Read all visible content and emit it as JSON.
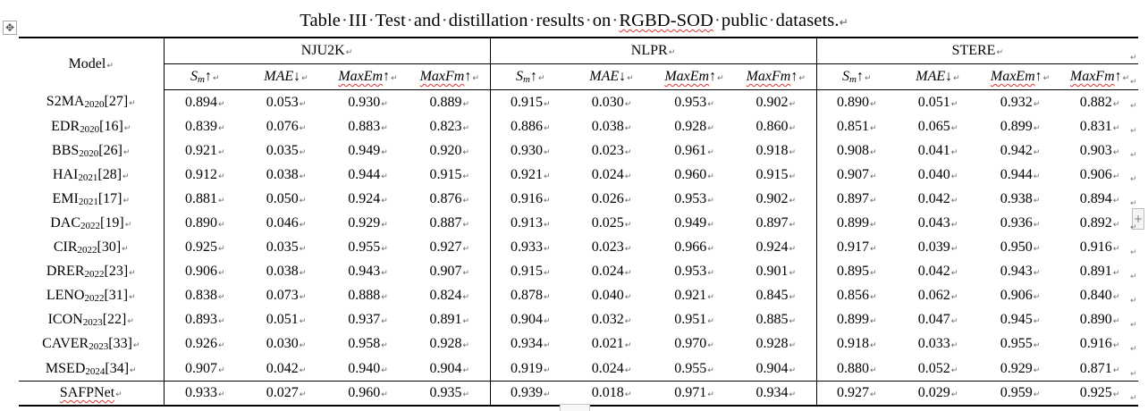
{
  "title": {
    "words": [
      "Table",
      "III",
      "Test",
      "and",
      "distillation",
      "results",
      "on",
      "RGBD-SOD",
      "public",
      "datasets."
    ],
    "space_mark": "·",
    "para_mark": "↵"
  },
  "icons": {
    "move_handle": "four-way-move-icon",
    "add_column": "plus-icon",
    "paragraph_mark": "↵"
  },
  "table": {
    "model_header": "Model",
    "datasets": [
      "NJU2K",
      "NLPR",
      "STERE"
    ],
    "metrics": [
      {
        "name": "S",
        "sub": "m",
        "arrow": "↑"
      },
      {
        "name": "MAE",
        "sub": "",
        "arrow": "↓"
      },
      {
        "name": "MaxEm",
        "sub": "",
        "arrow": "↑"
      },
      {
        "name": "MaxFm",
        "sub": "",
        "arrow": "↑"
      }
    ],
    "rows": [
      {
        "name": "S2MA",
        "year": "2020",
        "ref": "[27]",
        "values": [
          "0.894",
          "0.053",
          "0.930",
          "0.889",
          "0.915",
          "0.030",
          "0.953",
          "0.902",
          "0.890",
          "0.051",
          "0.932",
          "0.882"
        ]
      },
      {
        "name": "EDR",
        "year": "2020",
        "ref": "[16]",
        "values": [
          "0.839",
          "0.076",
          "0.883",
          "0.823",
          "0.886",
          "0.038",
          "0.928",
          "0.860",
          "0.851",
          "0.065",
          "0.899",
          "0.831"
        ]
      },
      {
        "name": "BBS",
        "year": "2020",
        "ref": "[26]",
        "values": [
          "0.921",
          "0.035",
          "0.949",
          "0.920",
          "0.930",
          "0.023",
          "0.961",
          "0.918",
          "0.908",
          "0.041",
          "0.942",
          "0.903"
        ]
      },
      {
        "name": "HAI",
        "year": "2021",
        "ref": "[28]",
        "values": [
          "0.912",
          "0.038",
          "0.944",
          "0.915",
          "0.921",
          "0.024",
          "0.960",
          "0.915",
          "0.907",
          "0.040",
          "0.944",
          "0.906"
        ]
      },
      {
        "name": "EMI",
        "year": "2021",
        "ref": "[17]",
        "values": [
          "0.881",
          "0.050",
          "0.924",
          "0.876",
          "0.916",
          "0.026",
          "0.953",
          "0.902",
          "0.897",
          "0.042",
          "0.938",
          "0.894"
        ]
      },
      {
        "name": "DAC",
        "year": "2022",
        "ref": "[19]",
        "values": [
          "0.890",
          "0.046",
          "0.929",
          "0.887",
          "0.913",
          "0.025",
          "0.949",
          "0.897",
          "0.899",
          "0.043",
          "0.936",
          "0.892"
        ]
      },
      {
        "name": "CIR",
        "year": "2022",
        "ref": "[30]",
        "values": [
          "0.925",
          "0.035",
          "0.955",
          "0.927",
          "0.933",
          "0.023",
          "0.966",
          "0.924",
          "0.917",
          "0.039",
          "0.950",
          "0.916"
        ]
      },
      {
        "name": "DRER",
        "year": "2022",
        "ref": "[23]",
        "values": [
          "0.906",
          "0.038",
          "0.943",
          "0.907",
          "0.915",
          "0.024",
          "0.953",
          "0.901",
          "0.895",
          "0.042",
          "0.943",
          "0.891"
        ]
      },
      {
        "name": "LENO",
        "year": "2022",
        "ref": "[31]",
        "values": [
          "0.838",
          "0.073",
          "0.888",
          "0.824",
          "0.878",
          "0.040",
          "0.921",
          "0.845",
          "0.856",
          "0.062",
          "0.906",
          "0.840"
        ]
      },
      {
        "name": "ICON",
        "year": "2023",
        "ref": "[22]",
        "values": [
          "0.893",
          "0.051",
          "0.937",
          "0.891",
          "0.904",
          "0.032",
          "0.951",
          "0.885",
          "0.899",
          "0.047",
          "0.945",
          "0.890"
        ]
      },
      {
        "name": "CAVER",
        "year": "2023",
        "ref": "[33]",
        "values": [
          "0.926",
          "0.030",
          "0.958",
          "0.928",
          "0.934",
          "0.021",
          "0.970",
          "0.928",
          "0.918",
          "0.033",
          "0.955",
          "0.916"
        ]
      },
      {
        "name": "MSED",
        "year": "2024",
        "ref": "[34]",
        "values": [
          "0.907",
          "0.042",
          "0.940",
          "0.904",
          "0.919",
          "0.024",
          "0.955",
          "0.904",
          "0.880",
          "0.052",
          "0.929",
          "0.871"
        ]
      }
    ],
    "final_row": {
      "name": "SAFPNet",
      "values": [
        "0.933",
        "0.027",
        "0.960",
        "0.935",
        "0.939",
        "0.018",
        "0.971",
        "0.934",
        "0.927",
        "0.029",
        "0.959",
        "0.925"
      ]
    }
  },
  "colors": {
    "text": "#000000",
    "rule": "#000000",
    "spellcheck_underline": "#d33333",
    "format_mark": "#555555"
  }
}
